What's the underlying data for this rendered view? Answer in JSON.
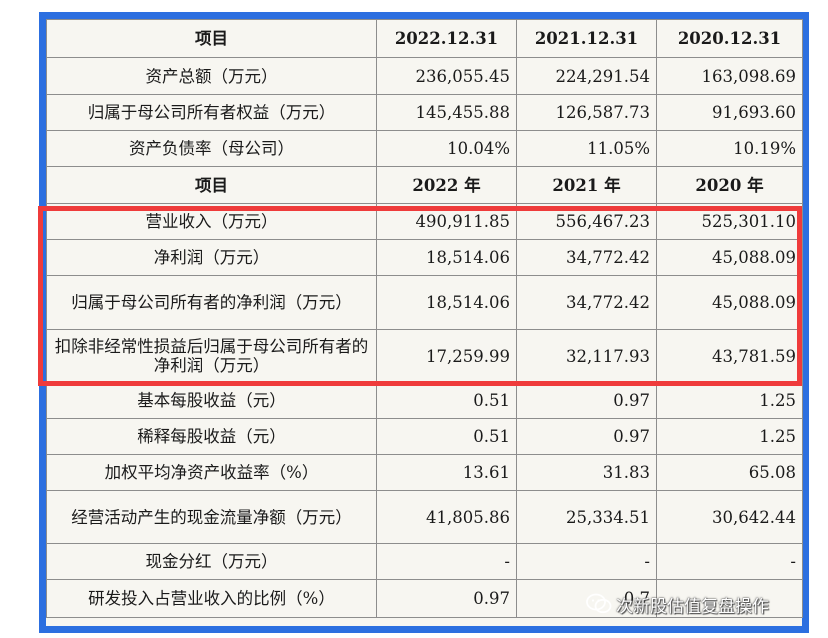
{
  "table": {
    "rows": [
      {
        "type": "header",
        "cells": [
          "项目",
          "2022.12.31",
          "2021.12.31",
          "2020.12.31"
        ]
      },
      {
        "type": "data",
        "cells": [
          "资产总额（万元）",
          "236,055.45",
          "224,291.54",
          "163,098.69"
        ]
      },
      {
        "type": "data",
        "cells": [
          "归属于母公司所有者权益（万元）",
          "145,455.88",
          "126,587.73",
          "91,693.60"
        ]
      },
      {
        "type": "data",
        "cells": [
          "资产负债率（母公司）",
          "10.04%",
          "11.05%",
          "10.19%"
        ]
      },
      {
        "type": "header",
        "cells": [
          "项目",
          "2022 年",
          "2021 年",
          "2020 年"
        ]
      },
      {
        "type": "data",
        "cells": [
          "营业收入（万元）",
          "490,911.85",
          "556,467.23",
          "525,301.10"
        ]
      },
      {
        "type": "data",
        "cells": [
          "净利润（万元）",
          "18,514.06",
          "34,772.42",
          "45,088.09"
        ]
      },
      {
        "type": "data",
        "cells": [
          "归属于母公司所有者的净利润（万元）",
          "18,514.06",
          "34,772.42",
          "45,088.09"
        ]
      },
      {
        "type": "data",
        "cells": [
          "扣除非经常性损益后归属于母公司所有者的净利润（万元）",
          "17,259.99",
          "32,117.93",
          "43,781.59"
        ]
      },
      {
        "type": "data",
        "cells": [
          "基本每股收益（元）",
          "0.51",
          "0.97",
          "1.25"
        ]
      },
      {
        "type": "data",
        "cells": [
          "稀释每股收益（元）",
          "0.51",
          "0.97",
          "1.25"
        ]
      },
      {
        "type": "data",
        "cells": [
          "加权平均净资产收益率（%）",
          "13.61",
          "31.83",
          "65.08"
        ]
      },
      {
        "type": "data",
        "cells": [
          "经营活动产生的现金流量净额（万元）",
          "41,805.86",
          "25,334.51",
          "30,642.44"
        ]
      },
      {
        "type": "data",
        "cells": [
          "现金分红（万元）",
          "-",
          "-",
          "-"
        ]
      },
      {
        "type": "data",
        "cells": [
          "研发投入占营业收入的比例（%）",
          "0.97",
          "0.7",
          ""
        ]
      }
    ]
  },
  "watermark": {
    "text": "次新股估值复盘操作",
    "icon": "wechat-icon"
  },
  "colors": {
    "frame": "#2c6fe0",
    "highlight": "#ef3b3b",
    "cell_background": "#f7f6f1",
    "grid": "#8d8d8d"
  }
}
